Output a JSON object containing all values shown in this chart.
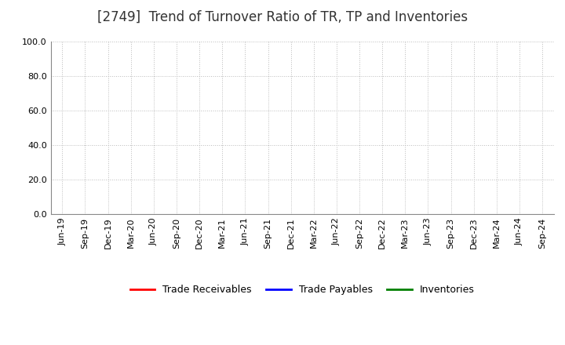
{
  "title": "[2749]  Trend of Turnover Ratio of TR, TP and Inventories",
  "ylim": [
    0.0,
    100.0
  ],
  "yticks": [
    0.0,
    20.0,
    40.0,
    60.0,
    80.0,
    100.0
  ],
  "x_labels": [
    "Jun-19",
    "Sep-19",
    "Dec-19",
    "Mar-20",
    "Jun-20",
    "Sep-20",
    "Dec-20",
    "Mar-21",
    "Jun-21",
    "Sep-21",
    "Dec-21",
    "Mar-22",
    "Jun-22",
    "Sep-22",
    "Dec-22",
    "Mar-23",
    "Jun-23",
    "Sep-23",
    "Dec-23",
    "Mar-24",
    "Jun-24",
    "Sep-24"
  ],
  "legend": [
    {
      "label": "Trade Receivables",
      "color": "#ff0000"
    },
    {
      "label": "Trade Payables",
      "color": "#0000ff"
    },
    {
      "label": "Inventories",
      "color": "#008000"
    }
  ],
  "background_color": "#ffffff",
  "grid_color": "#bbbbbb",
  "title_fontsize": 12,
  "tick_fontsize": 8,
  "legend_fontsize": 9
}
